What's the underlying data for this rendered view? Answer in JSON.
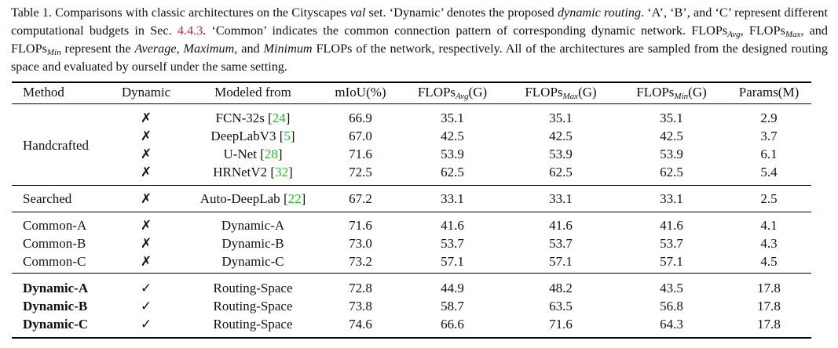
{
  "caption": {
    "p1": "Table 1. Comparisons with classic architectures on the Cityscapes ",
    "val": "val",
    "p2": " set. ‘Dynamic’ denotes the proposed ",
    "dyn": "dynamic routing",
    "p3": ". ‘A’, ‘B’, and ‘C’ represent different computational budgets in Sec. ",
    "secref": "4.4.3",
    "p4": ". ‘Common’ indicates the common connection pattern of corresponding dynamic network. FLOPs",
    "sub_avg": "Avg",
    "p5": ", FLOPs",
    "sub_max": "Max",
    "p6": ", and FLOPs",
    "sub_min": "Min",
    "p7": " represent the ",
    "w_avg": "Average",
    "p8": ", ",
    "w_max": "Maximum",
    "p9": ", and ",
    "w_min": "Minimum",
    "p10": " FLOPs of the network, respectively. All of the architectures are sampled from the designed routing space and evaluated by ourself under the same setting."
  },
  "table": {
    "headers": {
      "method": "Method",
      "dynamic": "Dynamic",
      "modeled": "Modeled from",
      "miou": "mIoU(%)",
      "flops_prefix": "FLOPs",
      "avg_sub": "Avg",
      "max_sub": "Max",
      "min_sub": "Min",
      "unit": "(G)",
      "params": "Params(M)"
    },
    "groups": {
      "handcrafted": "Handcrafted",
      "searched": "Searched"
    },
    "rows": [
      {
        "method": "",
        "dynamic": "✗",
        "model": "FCN-32s ",
        "ref": "24",
        "miou": "66.9",
        "avg": "35.1",
        "max": "35.1",
        "min": "35.1",
        "params": "2.9"
      },
      {
        "method": "",
        "dynamic": "✗",
        "model": "DeepLabV3 ",
        "ref": "5",
        "miou": "67.0",
        "avg": "42.5",
        "max": "42.5",
        "min": "42.5",
        "params": "3.7"
      },
      {
        "method": "",
        "dynamic": "✗",
        "model": "U-Net ",
        "ref": "28",
        "miou": "71.6",
        "avg": "53.9",
        "max": "53.9",
        "min": "53.9",
        "params": "6.1"
      },
      {
        "method": "",
        "dynamic": "✗",
        "model": "HRNetV2 ",
        "ref": "32",
        "miou": "72.5",
        "avg": "62.5",
        "max": "62.5",
        "min": "62.5",
        "params": "5.4"
      },
      {
        "method": "",
        "dynamic": "✗",
        "model": "Auto-DeepLab ",
        "ref": "22",
        "miou": "67.2",
        "avg": "33.1",
        "max": "33.1",
        "min": "33.1",
        "params": "2.5"
      },
      {
        "method": "Common-A",
        "dynamic": "✗",
        "model": "Dynamic-A",
        "ref": "",
        "miou": "71.6",
        "avg": "41.6",
        "max": "41.6",
        "min": "41.6",
        "params": "4.1"
      },
      {
        "method": "Common-B",
        "dynamic": "✗",
        "model": "Dynamic-B",
        "ref": "",
        "miou": "73.0",
        "avg": "53.7",
        "max": "53.7",
        "min": "53.7",
        "params": "4.3"
      },
      {
        "method": "Common-C",
        "dynamic": "✗",
        "model": "Dynamic-C",
        "ref": "",
        "miou": "73.2",
        "avg": "57.1",
        "max": "57.1",
        "min": "57.1",
        "params": "4.5"
      },
      {
        "method": "Dynamic-A",
        "dynamic": "✓",
        "model": "Routing-Space",
        "ref": "",
        "miou": "72.8",
        "avg": "44.9",
        "max": "48.2",
        "min": "43.5",
        "params": "17.8"
      },
      {
        "method": "Dynamic-B",
        "dynamic": "✓",
        "model": "Routing-Space",
        "ref": "",
        "miou": "73.8",
        "avg": "58.7",
        "max": "63.5",
        "min": "56.8",
        "params": "17.8"
      },
      {
        "method": "Dynamic-C",
        "dynamic": "✓",
        "model": "Routing-Space",
        "ref": "",
        "miou": "74.6",
        "avg": "66.6",
        "max": "71.6",
        "min": "64.3",
        "params": "17.8"
      }
    ]
  }
}
